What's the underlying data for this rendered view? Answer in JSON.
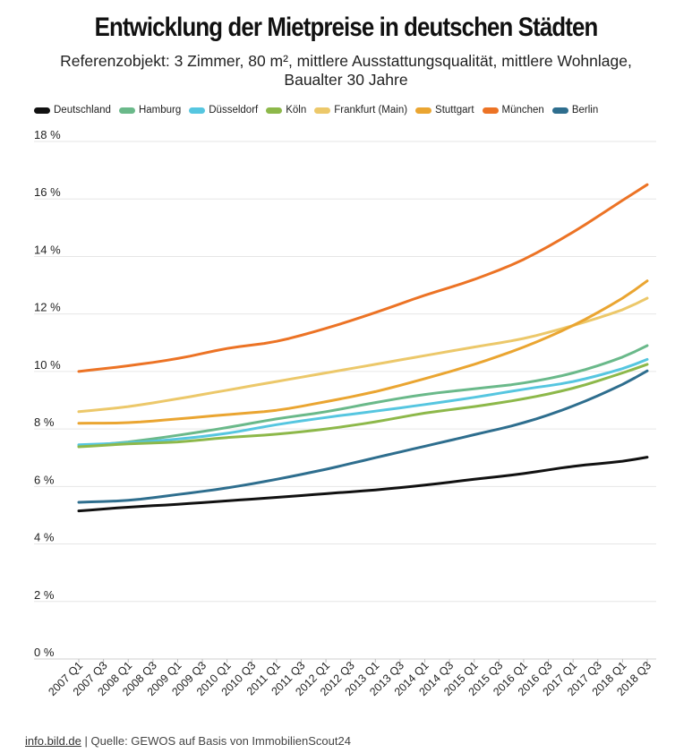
{
  "header": {
    "title": "Entwicklung der Mietpreise in deutschen Städten",
    "subtitle_line1": "Referenzobjekt: 3 Zimmer, 80 m², mittlere Ausstattungsqualität, mittlere Wohnlage,",
    "subtitle_line2": "Baualter 30 Jahre"
  },
  "footer": {
    "site": "info.bild.de",
    "separator": " | ",
    "source": "Quelle: GEWOS auf Basis von ImmobilienScout24"
  },
  "chart_data": {
    "type": "line",
    "title": "Entwicklung der Mietpreise in deutschen Städten",
    "xlabel": "",
    "ylabel": "",
    "ylim": [
      0,
      18
    ],
    "yticks": [
      0,
      2,
      4,
      6,
      8,
      10,
      12,
      14,
      16,
      18
    ],
    "ytick_labels": [
      "0 %",
      "2 %",
      "4 %",
      "6 %",
      "8 %",
      "10 %",
      "12 %",
      "14 %",
      "16 %",
      "18 %"
    ],
    "legend_position": "top-left",
    "grid": true,
    "x_tick_labels": [
      "2007 Q1",
      "2007 Q3",
      "2008 Q1",
      "2008 Q3",
      "2009 Q1",
      "2009 Q3",
      "2010 Q1",
      "2010 Q3",
      "2011 Q1",
      "2011 Q3",
      "2012 Q1",
      "2012 Q3",
      "2013 Q1",
      "2013 Q3",
      "2014 Q1",
      "2014 Q3",
      "2015 Q1",
      "2015 Q3",
      "2016 Q1",
      "2016 Q3",
      "2017 Q1",
      "2017 Q3",
      "2018 Q1",
      "2018 Q3"
    ],
    "x_count": 47,
    "series": [
      {
        "name": "Deutschland",
        "color": "#111111",
        "anchors": [
          [
            0,
            5.15
          ],
          [
            4,
            5.28
          ],
          [
            8,
            5.38
          ],
          [
            12,
            5.5
          ],
          [
            16,
            5.62
          ],
          [
            20,
            5.75
          ],
          [
            24,
            5.88
          ],
          [
            28,
            6.05
          ],
          [
            32,
            6.25
          ],
          [
            36,
            6.45
          ],
          [
            40,
            6.7
          ],
          [
            44,
            6.88
          ],
          [
            46,
            7.02
          ]
        ]
      },
      {
        "name": "Hamburg",
        "color": "#6ab98a",
        "anchors": [
          [
            0,
            7.4
          ],
          [
            4,
            7.55
          ],
          [
            8,
            7.78
          ],
          [
            12,
            8.05
          ],
          [
            16,
            8.35
          ],
          [
            20,
            8.6
          ],
          [
            24,
            8.92
          ],
          [
            28,
            9.2
          ],
          [
            32,
            9.4
          ],
          [
            36,
            9.6
          ],
          [
            40,
            9.95
          ],
          [
            44,
            10.5
          ],
          [
            46,
            10.9
          ]
        ]
      },
      {
        "name": "Düsseldorf",
        "color": "#56c6e0",
        "anchors": [
          [
            0,
            7.45
          ],
          [
            4,
            7.52
          ],
          [
            8,
            7.65
          ],
          [
            12,
            7.85
          ],
          [
            16,
            8.15
          ],
          [
            20,
            8.4
          ],
          [
            24,
            8.62
          ],
          [
            28,
            8.85
          ],
          [
            32,
            9.1
          ],
          [
            36,
            9.38
          ],
          [
            40,
            9.65
          ],
          [
            44,
            10.1
          ],
          [
            46,
            10.42
          ]
        ]
      },
      {
        "name": "Köln",
        "color": "#8db84a",
        "anchors": [
          [
            0,
            7.38
          ],
          [
            4,
            7.48
          ],
          [
            8,
            7.55
          ],
          [
            12,
            7.7
          ],
          [
            16,
            7.82
          ],
          [
            20,
            8.0
          ],
          [
            24,
            8.25
          ],
          [
            28,
            8.55
          ],
          [
            32,
            8.78
          ],
          [
            36,
            9.05
          ],
          [
            40,
            9.42
          ],
          [
            44,
            9.95
          ],
          [
            46,
            10.25
          ]
        ]
      },
      {
        "name": "Frankfurt (Main)",
        "color": "#ecc86a",
        "anchors": [
          [
            0,
            8.6
          ],
          [
            4,
            8.78
          ],
          [
            8,
            9.05
          ],
          [
            12,
            9.35
          ],
          [
            16,
            9.65
          ],
          [
            20,
            9.95
          ],
          [
            24,
            10.25
          ],
          [
            28,
            10.55
          ],
          [
            32,
            10.85
          ],
          [
            36,
            11.15
          ],
          [
            40,
            11.6
          ],
          [
            44,
            12.15
          ],
          [
            46,
            12.55
          ]
        ]
      },
      {
        "name": "Stuttgart",
        "color": "#eaa531",
        "anchors": [
          [
            0,
            8.2
          ],
          [
            4,
            8.22
          ],
          [
            8,
            8.35
          ],
          [
            12,
            8.5
          ],
          [
            16,
            8.65
          ],
          [
            20,
            8.95
          ],
          [
            24,
            9.3
          ],
          [
            28,
            9.75
          ],
          [
            32,
            10.25
          ],
          [
            36,
            10.85
          ],
          [
            40,
            11.6
          ],
          [
            44,
            12.55
          ],
          [
            46,
            13.15
          ]
        ]
      },
      {
        "name": "München",
        "color": "#ec7325",
        "anchors": [
          [
            0,
            10.0
          ],
          [
            4,
            10.2
          ],
          [
            8,
            10.45
          ],
          [
            12,
            10.8
          ],
          [
            16,
            11.05
          ],
          [
            20,
            11.5
          ],
          [
            24,
            12.05
          ],
          [
            28,
            12.65
          ],
          [
            32,
            13.2
          ],
          [
            36,
            13.9
          ],
          [
            40,
            14.85
          ],
          [
            44,
            15.95
          ],
          [
            46,
            16.5
          ]
        ]
      },
      {
        "name": "Berlin",
        "color": "#2e6e8e",
        "anchors": [
          [
            0,
            5.45
          ],
          [
            4,
            5.52
          ],
          [
            8,
            5.72
          ],
          [
            12,
            5.95
          ],
          [
            16,
            6.25
          ],
          [
            20,
            6.6
          ],
          [
            24,
            7.0
          ],
          [
            28,
            7.4
          ],
          [
            32,
            7.8
          ],
          [
            36,
            8.22
          ],
          [
            40,
            8.8
          ],
          [
            44,
            9.55
          ],
          [
            46,
            10.02
          ]
        ]
      }
    ]
  }
}
